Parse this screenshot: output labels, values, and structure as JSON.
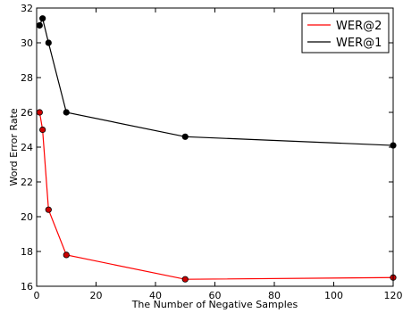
{
  "chart_data": {
    "type": "line",
    "title": "",
    "xlabel": "The Number of Negative Samples",
    "ylabel": "Word Error Rate",
    "xlim": [
      0,
      120
    ],
    "ylim": [
      16,
      32
    ],
    "xticks": [
      0,
      20,
      40,
      60,
      80,
      100,
      120
    ],
    "yticks": [
      16,
      18,
      20,
      22,
      24,
      26,
      28,
      30,
      32
    ],
    "grid": false,
    "legend_position": "top-right",
    "series": [
      {
        "name": "WER@2",
        "color": "#ff0000",
        "marker_fill": "#cc0000",
        "x": [
          1,
          2,
          4,
          10,
          50,
          120
        ],
        "y": [
          26.0,
          25.0,
          20.4,
          17.8,
          16.4,
          16.5
        ]
      },
      {
        "name": "WER@1",
        "color": "#000000",
        "marker_fill": "#000000",
        "x": [
          1,
          2,
          4,
          10,
          50,
          120
        ],
        "y": [
          31.0,
          31.4,
          30.0,
          26.0,
          24.6,
          24.1
        ]
      }
    ]
  }
}
